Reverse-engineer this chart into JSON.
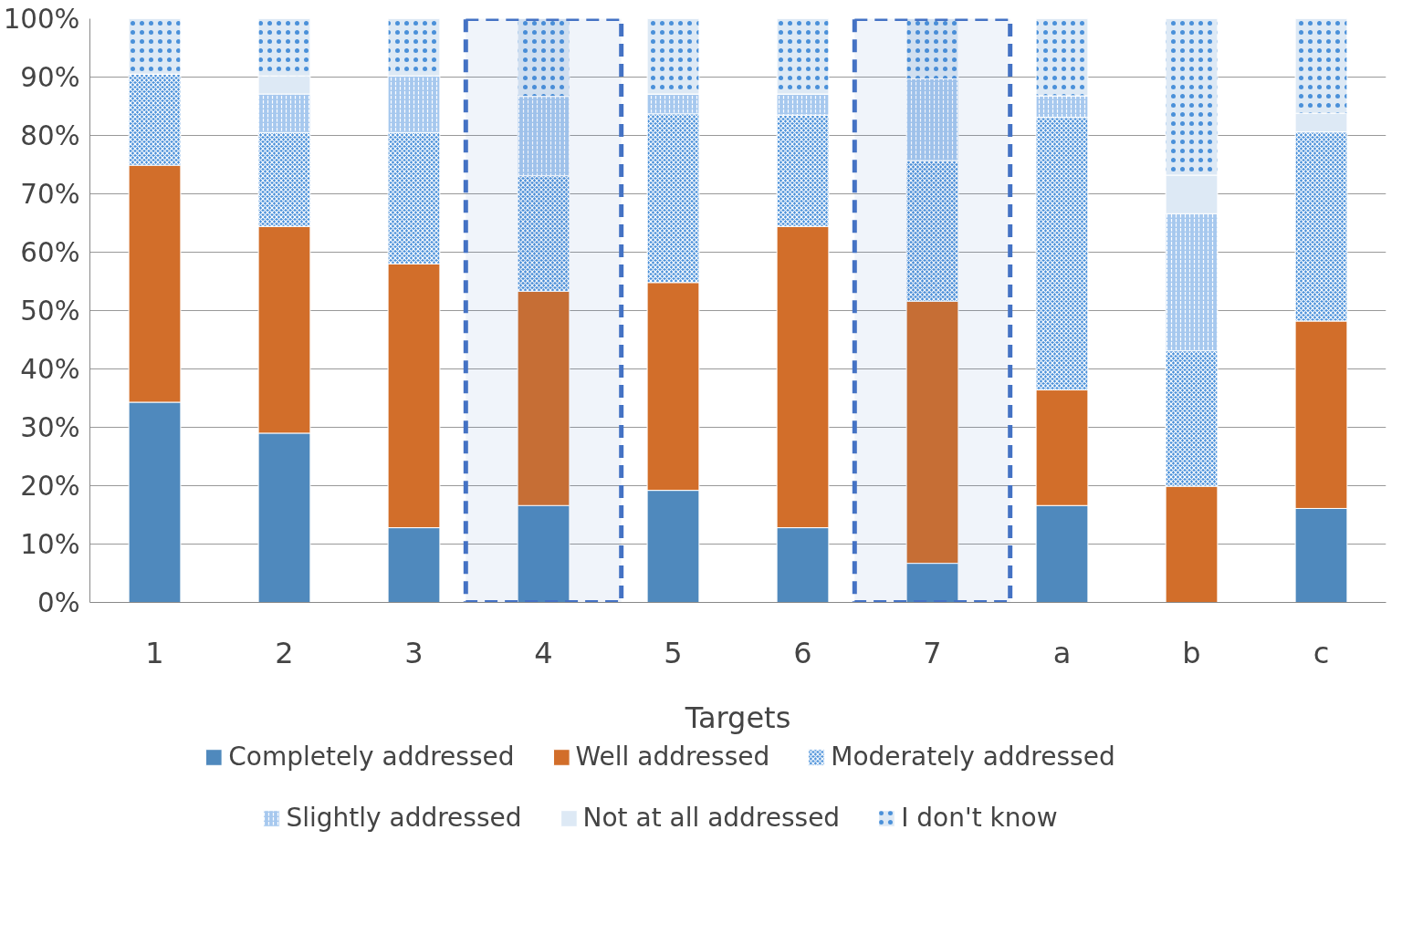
{
  "chart_data": {
    "type": "bar",
    "stacked": true,
    "xlabel": "Targets",
    "categories": [
      "1",
      "2",
      "3",
      "4",
      "5",
      "6",
      "7",
      "a",
      "b",
      "c"
    ],
    "series": [
      {
        "name": "Completely addressed",
        "color": "#4f89bd",
        "values": [
          34.3,
          29.0,
          12.8,
          16.6,
          19.2,
          12.8,
          6.7,
          16.6,
          0,
          16.1
        ]
      },
      {
        "name": "Well addressed",
        "color": "#d26e2a",
        "values": [
          40.6,
          35.4,
          45.2,
          36.7,
          35.6,
          51.6,
          44.9,
          19.8,
          19.9,
          32.1
        ]
      },
      {
        "name": "Moderately addressed",
        "color": "#4a90d9",
        "values": [
          15.6,
          16.1,
          22.5,
          19.8,
          28.9,
          19.1,
          24.1,
          46.7,
          23.2,
          32.4
        ]
      },
      {
        "name": "Slightly addressed",
        "color": "#a6c8ee",
        "values": [
          0,
          6.6,
          9.7,
          13.6,
          3.4,
          3.6,
          14.0,
          3.7,
          23.5,
          0
        ]
      },
      {
        "name": "Not at all addressed",
        "color": "#dde9f5",
        "values": [
          0,
          3.1,
          0,
          0,
          0,
          0,
          0,
          0,
          6.6,
          3.2
        ]
      },
      {
        "name": "I don't know",
        "color": "#dde9f5",
        "values": [
          9.5,
          9.8,
          9.8,
          13.3,
          12.9,
          12.9,
          10.3,
          13.2,
          26.8,
          16.2
        ]
      }
    ],
    "ylim": [
      0,
      100
    ],
    "yticks": [
      {
        "value": 0,
        "label": "0%"
      },
      {
        "value": 10,
        "label": "10%"
      },
      {
        "value": 20,
        "label": "20%"
      },
      {
        "value": 30,
        "label": "30%"
      },
      {
        "value": 40,
        "label": "40%"
      },
      {
        "value": 50,
        "label": "50%"
      },
      {
        "value": 60,
        "label": "60%"
      },
      {
        "value": 70,
        "label": "70%"
      },
      {
        "value": 80,
        "label": "80%"
      },
      {
        "value": 90,
        "label": "90%"
      },
      {
        "value": 100,
        "label": "100%"
      }
    ],
    "bands": [
      {
        "axis": "x",
        "from": "4",
        "to": "4",
        "color": "#4472c4"
      },
      {
        "axis": "x",
        "from": "7",
        "to": "7",
        "color": "#4472c4"
      }
    ],
    "grid": "y",
    "legend": "bottom"
  }
}
